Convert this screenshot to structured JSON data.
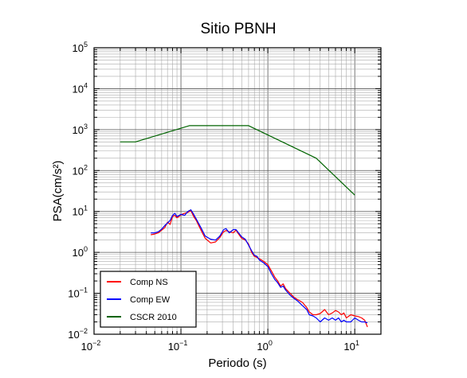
{
  "chart_data": {
    "type": "line",
    "title": "Sitio PBNH",
    "xlabel": "Periodo (s)",
    "ylabel": "PSA(cm/s²)",
    "xscale": "log",
    "yscale": "log",
    "xlim": [
      0.01,
      20
    ],
    "ylim": [
      0.01,
      100000
    ],
    "grid": true,
    "legend_position": "bottom-left",
    "x_tick_labels": [
      {
        "base": "10",
        "exp": "−2",
        "value": 0.01
      },
      {
        "base": "10",
        "exp": "−1",
        "value": 0.1
      },
      {
        "base": "10",
        "exp": "0",
        "value": 1
      },
      {
        "base": "10",
        "exp": "1",
        "value": 10
      }
    ],
    "y_tick_labels": [
      {
        "base": "10",
        "exp": "−2",
        "value": 0.01
      },
      {
        "base": "10",
        "exp": "−1",
        "value": 0.1
      },
      {
        "base": "10",
        "exp": "0",
        "value": 1
      },
      {
        "base": "10",
        "exp": "1",
        "value": 10
      },
      {
        "base": "10",
        "exp": "2",
        "value": 100
      },
      {
        "base": "10",
        "exp": "3",
        "value": 1000
      },
      {
        "base": "10",
        "exp": "4",
        "value": 10000
      },
      {
        "base": "10",
        "exp": "5",
        "value": 100000
      }
    ],
    "series": [
      {
        "name": "Comp NS",
        "color": "#ff0000",
        "points": [
          [
            0.045,
            2.7
          ],
          [
            0.05,
            2.8
          ],
          [
            0.055,
            3.0
          ],
          [
            0.06,
            3.5
          ],
          [
            0.065,
            4.0
          ],
          [
            0.07,
            5.5
          ],
          [
            0.075,
            4.8
          ],
          [
            0.08,
            7.5
          ],
          [
            0.085,
            8.0
          ],
          [
            0.09,
            7.0
          ],
          [
            0.1,
            8.2
          ],
          [
            0.11,
            9.0
          ],
          [
            0.12,
            9.5
          ],
          [
            0.13,
            10.5
          ],
          [
            0.14,
            7.5
          ],
          [
            0.15,
            6.0
          ],
          [
            0.17,
            3.5
          ],
          [
            0.19,
            2.2
          ],
          [
            0.22,
            1.7
          ],
          [
            0.25,
            1.8
          ],
          [
            0.28,
            2.3
          ],
          [
            0.31,
            3.2
          ],
          [
            0.33,
            3.4
          ],
          [
            0.36,
            3.2
          ],
          [
            0.4,
            3.0
          ],
          [
            0.43,
            3.5
          ],
          [
            0.45,
            3.0
          ],
          [
            0.5,
            2.2
          ],
          [
            0.55,
            2.0
          ],
          [
            0.6,
            1.6
          ],
          [
            0.65,
            1.0
          ],
          [
            0.7,
            0.8
          ],
          [
            0.75,
            0.75
          ],
          [
            0.8,
            0.7
          ],
          [
            0.9,
            0.6
          ],
          [
            1.0,
            0.5
          ],
          [
            1.1,
            0.35
          ],
          [
            1.2,
            0.25
          ],
          [
            1.3,
            0.2
          ],
          [
            1.4,
            0.15
          ],
          [
            1.5,
            0.17
          ],
          [
            1.6,
            0.13
          ],
          [
            1.8,
            0.1
          ],
          [
            2.0,
            0.08
          ],
          [
            2.2,
            0.07
          ],
          [
            2.5,
            0.06
          ],
          [
            2.8,
            0.045
          ],
          [
            3.0,
            0.035
          ],
          [
            3.3,
            0.03
          ],
          [
            3.6,
            0.03
          ],
          [
            4.0,
            0.032
          ],
          [
            4.5,
            0.04
          ],
          [
            5.0,
            0.03
          ],
          [
            5.5,
            0.033
          ],
          [
            6.0,
            0.038
          ],
          [
            6.5,
            0.035
          ],
          [
            7.0,
            0.03
          ],
          [
            7.5,
            0.033
          ],
          [
            8.0,
            0.025
          ],
          [
            9.0,
            0.03
          ],
          [
            10.0,
            0.028
          ],
          [
            11.0,
            0.027
          ],
          [
            12.0,
            0.025
          ],
          [
            13.0,
            0.022
          ],
          [
            14.0,
            0.015
          ]
        ]
      },
      {
        "name": "Comp EW",
        "color": "#0000ff",
        "points": [
          [
            0.045,
            3.0
          ],
          [
            0.05,
            3.0
          ],
          [
            0.055,
            3.2
          ],
          [
            0.06,
            3.7
          ],
          [
            0.065,
            4.5
          ],
          [
            0.07,
            5.2
          ],
          [
            0.075,
            6.0
          ],
          [
            0.08,
            8.0
          ],
          [
            0.085,
            9.0
          ],
          [
            0.09,
            7.5
          ],
          [
            0.1,
            8.5
          ],
          [
            0.11,
            8.0
          ],
          [
            0.12,
            10.0
          ],
          [
            0.13,
            11.0
          ],
          [
            0.14,
            8.5
          ],
          [
            0.15,
            6.5
          ],
          [
            0.17,
            4.0
          ],
          [
            0.19,
            2.5
          ],
          [
            0.22,
            2.1
          ],
          [
            0.25,
            2.0
          ],
          [
            0.28,
            2.5
          ],
          [
            0.31,
            3.6
          ],
          [
            0.33,
            3.8
          ],
          [
            0.36,
            3.0
          ],
          [
            0.4,
            3.6
          ],
          [
            0.43,
            3.6
          ],
          [
            0.45,
            3.2
          ],
          [
            0.5,
            2.4
          ],
          [
            0.55,
            2.1
          ],
          [
            0.6,
            1.5
          ],
          [
            0.65,
            1.1
          ],
          [
            0.7,
            0.85
          ],
          [
            0.75,
            0.8
          ],
          [
            0.8,
            0.65
          ],
          [
            0.9,
            0.55
          ],
          [
            1.0,
            0.45
          ],
          [
            1.1,
            0.3
          ],
          [
            1.2,
            0.22
          ],
          [
            1.3,
            0.18
          ],
          [
            1.4,
            0.14
          ],
          [
            1.5,
            0.15
          ],
          [
            1.6,
            0.12
          ],
          [
            1.8,
            0.09
          ],
          [
            2.0,
            0.075
          ],
          [
            2.2,
            0.065
          ],
          [
            2.5,
            0.05
          ],
          [
            2.8,
            0.04
          ],
          [
            3.0,
            0.03
          ],
          [
            3.3,
            0.028
          ],
          [
            3.6,
            0.025
          ],
          [
            4.0,
            0.02
          ],
          [
            4.5,
            0.025
          ],
          [
            5.0,
            0.022
          ],
          [
            5.5,
            0.025
          ],
          [
            6.0,
            0.022
          ],
          [
            6.5,
            0.025
          ],
          [
            7.0,
            0.02
          ],
          [
            7.5,
            0.022
          ],
          [
            8.0,
            0.02
          ],
          [
            9.0,
            0.02
          ],
          [
            10.0,
            0.025
          ],
          [
            11.0,
            0.022
          ],
          [
            12.0,
            0.02
          ],
          [
            13.0,
            0.02
          ],
          [
            14.0,
            0.019
          ]
        ]
      },
      {
        "name": "CSCR 2010",
        "color": "#006400",
        "points": [
          [
            0.02,
            500
          ],
          [
            0.03,
            500
          ],
          [
            0.125,
            1250
          ],
          [
            0.6,
            1250
          ],
          [
            3.6,
            200
          ],
          [
            10.0,
            25
          ]
        ]
      }
    ]
  }
}
